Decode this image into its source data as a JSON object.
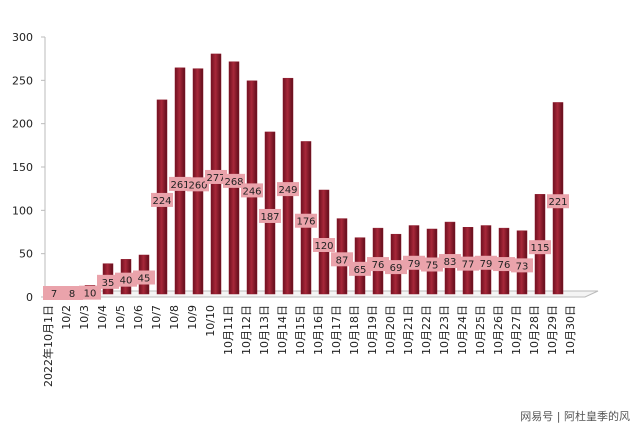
{
  "chart_data": {
    "type": "bar",
    "categories": [
      "2022年10月1日",
      "10/2",
      "10/3",
      "10/4",
      "10/5",
      "10/6",
      "10/7",
      "10/8",
      "10/9",
      "10/10",
      "10月11日",
      "10月12日",
      "10月13日",
      "10月14日",
      "10月15日",
      "10月16日",
      "10月17日",
      "10月18日",
      "10月19日",
      "10月20日",
      "10月21日",
      "10月22日",
      "10月23日",
      "10月24日",
      "10月25日",
      "10月26日",
      "10月27日",
      "10月28日",
      "10月29日",
      "10月30日"
    ],
    "values": [
      7,
      8,
      10,
      35,
      40,
      45,
      224,
      261,
      260,
      277,
      268,
      246,
      187,
      249,
      176,
      120,
      87,
      65,
      76,
      69,
      79,
      75,
      83,
      77,
      79,
      76,
      73,
      115,
      221,
      null
    ],
    "color": "#8e1b2c",
    "ylim": [
      0,
      300
    ],
    "yticks": [
      0,
      50,
      100,
      150,
      200,
      250,
      300
    ],
    "grid": false,
    "watermark": "网易号 | 阿杜皇季的风"
  }
}
